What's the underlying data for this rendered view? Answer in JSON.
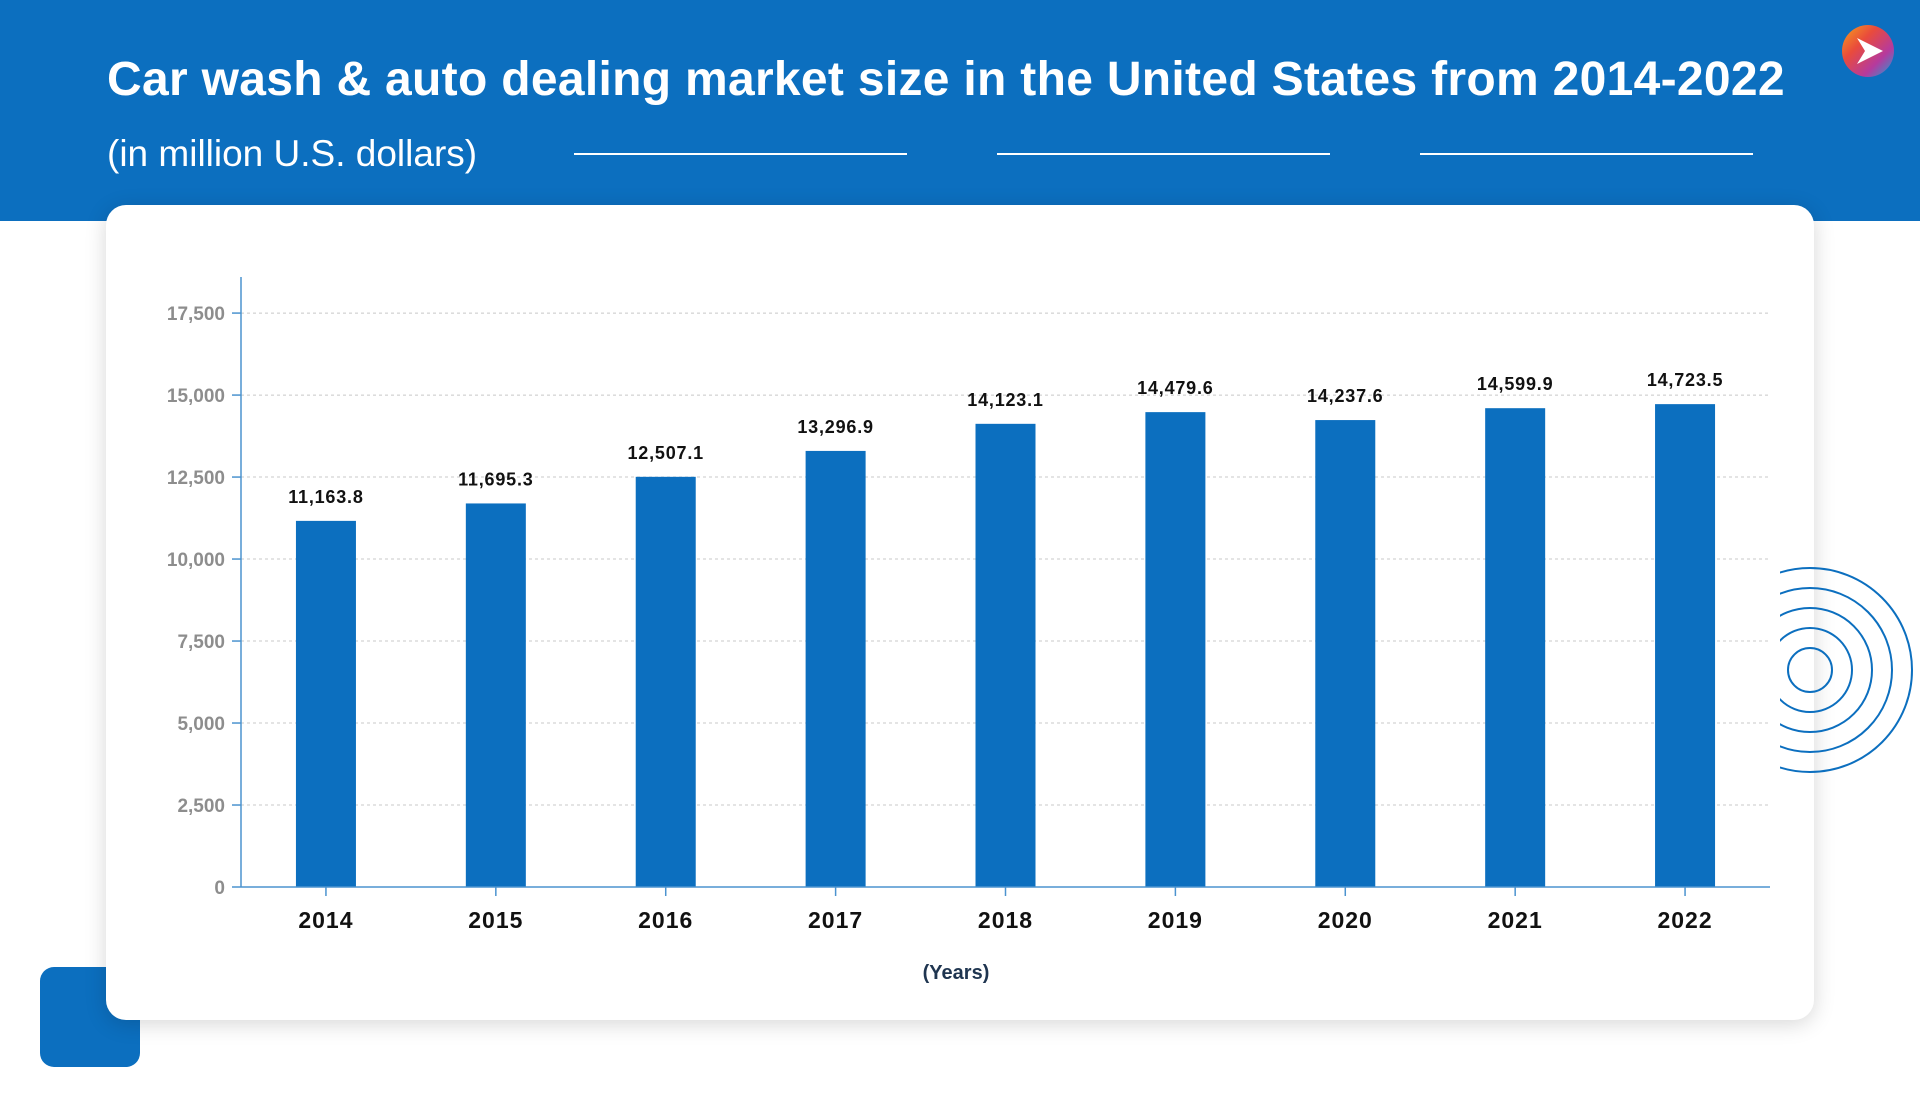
{
  "header": {
    "title": "Car wash & auto dealing market size in the United States from 2014-2022",
    "subtitle": "(in million U.S. dollars)"
  },
  "colors": {
    "header_bg": "#0c6fbf",
    "bar": "#0c6fbf",
    "axis": "#4b93cf",
    "grid": "#c8c8c8"
  },
  "logo": {
    "icon": "play-arrow-logo-icon"
  },
  "chart_data": {
    "type": "bar",
    "title": "Car wash & auto dealing market size in the United States from 2014-2022",
    "subtitle": "(in million U.S. dollars)",
    "xlabel": "(Years)",
    "ylabel": "",
    "categories": [
      "2014",
      "2015",
      "2016",
      "2017",
      "2018",
      "2019",
      "2020",
      "2021",
      "2022"
    ],
    "values": [
      11163.8,
      11695.3,
      12507.1,
      13296.9,
      14123.1,
      14479.6,
      14237.6,
      14599.9,
      14723.5
    ],
    "value_labels": [
      "11,163.8",
      "11,695.3",
      "12,507.1",
      "13,296.9",
      "14,123.1",
      "14,479.6",
      "14,237.6",
      "14,599.9",
      "14,723.5"
    ],
    "ylim": [
      0,
      18600
    ],
    "yticks": [
      0,
      2500,
      5000,
      7500,
      10000,
      12500,
      15000,
      17500
    ],
    "ytick_labels": [
      "0",
      "2,500",
      "5,000",
      "7,500",
      "10,000",
      "12,500",
      "15,000",
      "17,500"
    ],
    "grid": true,
    "legend": "none"
  }
}
